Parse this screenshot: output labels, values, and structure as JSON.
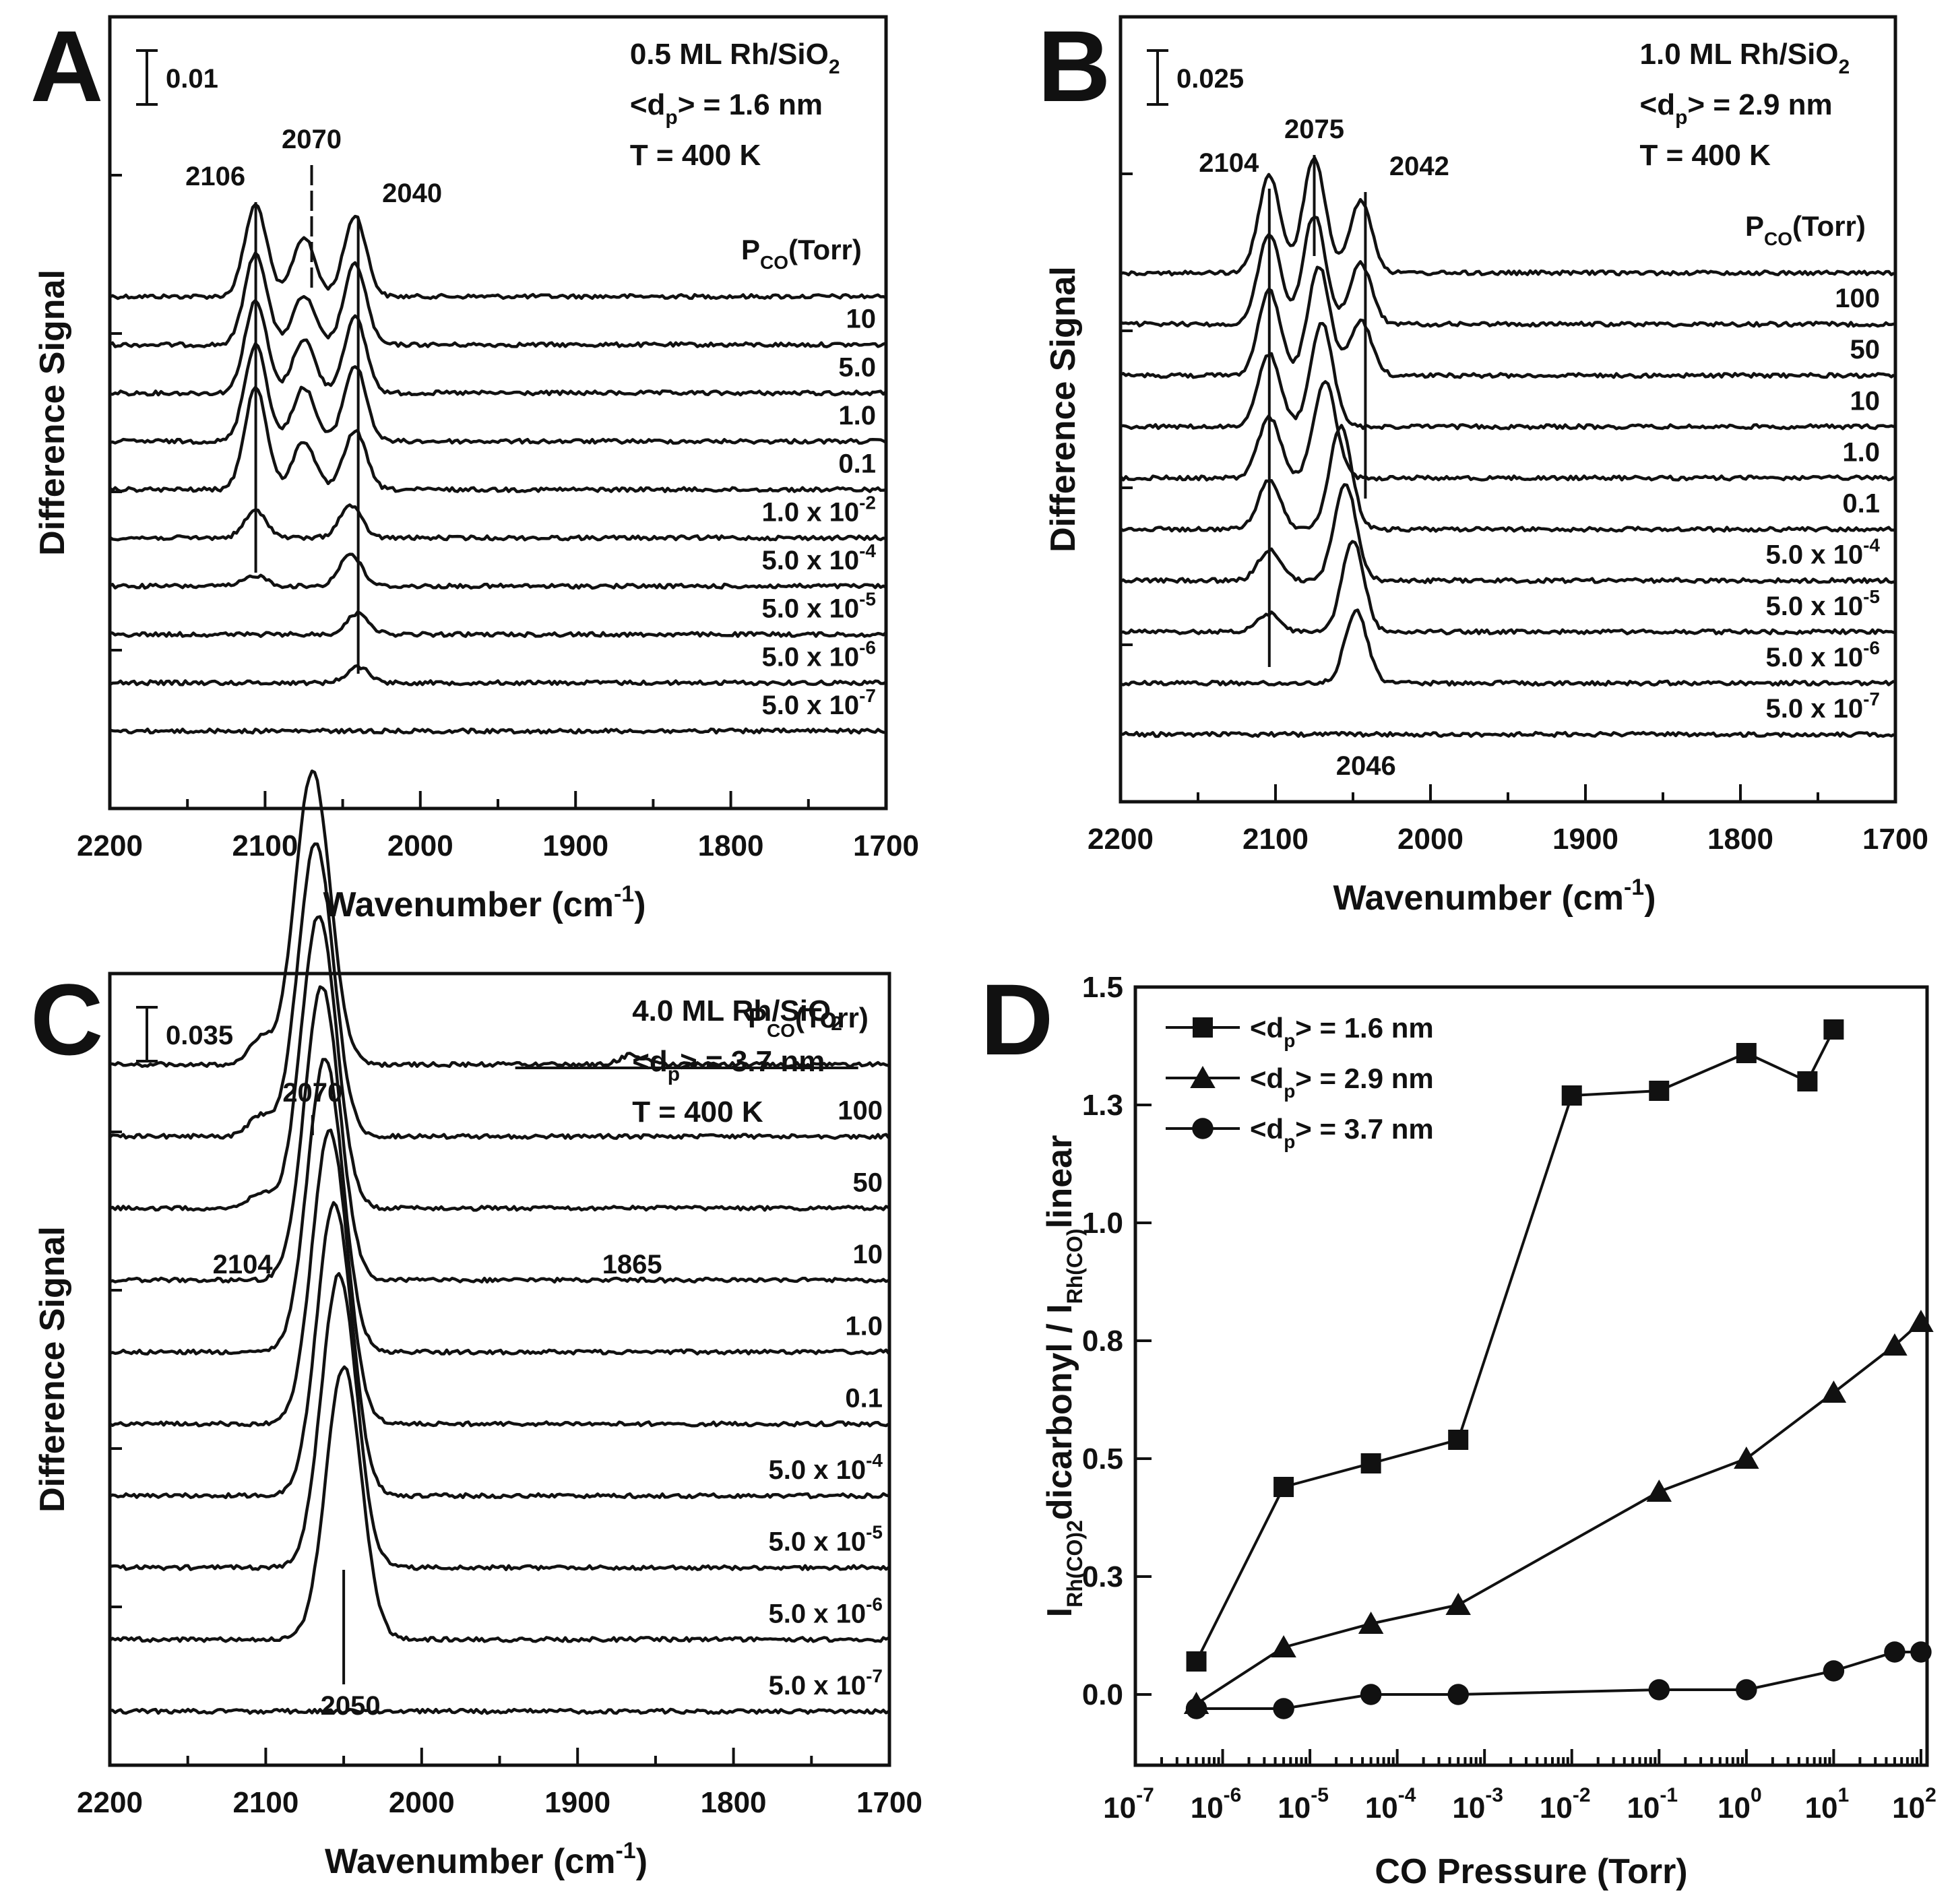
{
  "chart_data": [
    {
      "panel": "A",
      "type": "line",
      "scale_bar": "0.01",
      "info": [
        "0.5 ML Rh/SiO",
        "<d",
        "> = 1.6 nm",
        "T = 400 K"
      ],
      "info_sub": [
        "2",
        "p"
      ],
      "xlabel": "Wavenumber (cm",
      "xlabel_sup": "-1",
      "ylabel": "Difference Signal",
      "xlim": [
        2200,
        1700
      ],
      "xticks": [
        "2200",
        "2100",
        "2000",
        "1900",
        "1800",
        "1700"
      ],
      "pressure_header": "P",
      "pressure_header_sub": "CO",
      "pressure_header_unit": "(Torr)",
      "peak_labels": [
        "2106",
        "2070",
        "2040"
      ],
      "peak_positions": [
        2106,
        2070,
        2040
      ],
      "traces": [
        {
          "base": "",
          "exp": "",
          "peaks": [
            [
              2106,
              0.85
            ],
            [
              2075,
              0.55
            ],
            [
              2042,
              0.75
            ]
          ]
        },
        {
          "base": "10",
          "exp": "",
          "peaks": [
            [
              2106,
              0.85
            ],
            [
              2075,
              0.45
            ],
            [
              2042,
              0.75
            ]
          ]
        },
        {
          "base": "5.0",
          "exp": "",
          "peaks": [
            [
              2106,
              0.85
            ],
            [
              2075,
              0.5
            ],
            [
              2042,
              0.7
            ]
          ]
        },
        {
          "base": "1.0",
          "exp": "",
          "peaks": [
            [
              2106,
              0.9
            ],
            [
              2075,
              0.5
            ],
            [
              2042,
              0.7
            ]
          ]
        },
        {
          "base": "0.1",
          "exp": "",
          "peaks": [
            [
              2106,
              0.95
            ],
            [
              2075,
              0.45
            ],
            [
              2042,
              0.55
            ]
          ]
        },
        {
          "base": "1.0 x 10",
          "exp": "-2",
          "peaks": [
            [
              2106,
              0.25
            ],
            [
              2045,
              0.3
            ]
          ]
        },
        {
          "base": "5.0 x 10",
          "exp": "-4",
          "peaks": [
            [
              2106,
              0.1
            ],
            [
              2045,
              0.3
            ]
          ]
        },
        {
          "base": "5.0 x 10",
          "exp": "-5",
          "peaks": [
            [
              2040,
              0.2
            ]
          ]
        },
        {
          "base": "5.0 x 10",
          "exp": "-6",
          "peaks": [
            [
              2040,
              0.15
            ]
          ]
        },
        {
          "base": "5.0 x 10",
          "exp": "-7",
          "peaks": []
        }
      ]
    },
    {
      "panel": "B",
      "type": "line",
      "scale_bar": "0.025",
      "info": [
        "1.0 ML Rh/SiO",
        "<d",
        "> = 2.9 nm",
        "T = 400 K"
      ],
      "info_sub": [
        "2",
        "p"
      ],
      "xlabel": "Wavenumber (cm",
      "xlabel_sup": "-1",
      "ylabel": "Difference Signal",
      "xlim": [
        2200,
        1700
      ],
      "xticks": [
        "2200",
        "2100",
        "2000",
        "1900",
        "1800",
        "1700"
      ],
      "pressure_header": "P",
      "pressure_header_sub": "CO",
      "pressure_header_unit": "(Torr)",
      "peak_labels": [
        "2104",
        "2075",
        "2042",
        "2046"
      ],
      "peak_positions": [
        2104,
        2075,
        2042,
        2046
      ],
      "traces": [
        {
          "base": "",
          "exp": "",
          "peaks": [
            [
              2104,
              0.8
            ],
            [
              2075,
              0.95
            ],
            [
              2045,
              0.6
            ]
          ]
        },
        {
          "base": "100",
          "exp": "",
          "peaks": [
            [
              2104,
              0.75
            ],
            [
              2075,
              0.9
            ],
            [
              2045,
              0.5
            ]
          ]
        },
        {
          "base": "50",
          "exp": "",
          "peaks": [
            [
              2104,
              0.7
            ],
            [
              2072,
              0.9
            ],
            [
              2045,
              0.45
            ]
          ]
        },
        {
          "base": "10",
          "exp": "",
          "peaks": [
            [
              2104,
              0.6
            ],
            [
              2070,
              0.85
            ]
          ]
        },
        {
          "base": "1.0",
          "exp": "",
          "peaks": [
            [
              2104,
              0.5
            ],
            [
              2068,
              0.8
            ]
          ]
        },
        {
          "base": "0.1",
          "exp": "",
          "peaks": [
            [
              2104,
              0.4
            ],
            [
              2058,
              0.85
            ]
          ]
        },
        {
          "base": "5.0 x 10",
          "exp": "-4",
          "peaks": [
            [
              2104,
              0.25
            ],
            [
              2055,
              0.8
            ]
          ]
        },
        {
          "base": "5.0 x 10",
          "exp": "-5",
          "peaks": [
            [
              2104,
              0.15
            ],
            [
              2050,
              0.75
            ]
          ]
        },
        {
          "base": "5.0 x 10",
          "exp": "-6",
          "peaks": [
            [
              2048,
              0.6
            ]
          ]
        },
        {
          "base": "5.0 x 10",
          "exp": "-7",
          "peaks": []
        }
      ]
    },
    {
      "panel": "C",
      "type": "line",
      "scale_bar": "0.035",
      "info": [
        "4.0 ML Rh/SiO",
        "<d",
        "> = 3.7 nm",
        "T = 400 K"
      ],
      "info_sub": [
        "2",
        "p"
      ],
      "xlabel": "Wavenumber (cm",
      "xlabel_sup": "-1",
      "ylabel": "Difference Signal",
      "xlim": [
        2200,
        1700
      ],
      "xticks": [
        "2200",
        "2100",
        "2000",
        "1900",
        "1800",
        "1700"
      ],
      "pressure_header": "P",
      "pressure_header_sub": "CO",
      "pressure_header_unit": "(Torr)",
      "peak_labels": [
        "2070",
        "2104",
        "1865",
        "2050"
      ],
      "peak_positions": [
        2070,
        2104,
        1865,
        2050
      ],
      "traces": [
        {
          "base": "",
          "exp": "",
          "peaks": [
            [
              2070,
              2.9
            ],
            [
              2104,
              0.25
            ],
            [
              1865,
              0.1
            ]
          ]
        },
        {
          "base": "100",
          "exp": "",
          "peaks": [
            [
              2068,
              2.9
            ],
            [
              2104,
              0.2
            ]
          ]
        },
        {
          "base": "50",
          "exp": "",
          "peaks": [
            [
              2066,
              2.9
            ],
            [
              2104,
              0.15
            ]
          ]
        },
        {
          "base": "10",
          "exp": "",
          "peaks": [
            [
              2064,
              2.9
            ]
          ]
        },
        {
          "base": "1.0",
          "exp": "",
          "peaks": [
            [
              2062,
              2.9
            ]
          ]
        },
        {
          "base": "0.1",
          "exp": "",
          "peaks": [
            [
              2059,
              2.9
            ]
          ]
        },
        {
          "base": "5.0 x 10",
          "exp": "-4",
          "peaks": [
            [
              2056,
              2.9
            ]
          ]
        },
        {
          "base": "5.0 x 10",
          "exp": "-5",
          "peaks": [
            [
              2053,
              2.9
            ]
          ]
        },
        {
          "base": "5.0 x 10",
          "exp": "-6",
          "peaks": [
            [
              2050,
              2.7
            ]
          ]
        },
        {
          "base": "5.0 x 10",
          "exp": "-7",
          "peaks": []
        }
      ]
    },
    {
      "panel": "D",
      "type": "scatter",
      "xscale": "log",
      "xlabel": "CO Pressure (Torr)",
      "ylabel_parts": [
        "I",
        "Rh(CO)2",
        "dicarbonyl / I",
        "Rh(CO)",
        "linear"
      ],
      "xlim_exp": [
        -7,
        2
      ],
      "xtick_exps": [
        "-7",
        "-6",
        "-5",
        "-4",
        "-3",
        "-2",
        "-1",
        "0",
        "1",
        "2"
      ],
      "ylim": [
        -0.15,
        1.5
      ],
      "yticks": [
        "0.0",
        "0.3",
        "0.5",
        "0.8",
        "1.0",
        "1.3",
        "1.5"
      ],
      "ytick_values": [
        0.0,
        0.25,
        0.5,
        0.75,
        1.0,
        1.25,
        1.5
      ],
      "legend_position": "top-left",
      "series": [
        {
          "name": "<d",
          "name_sub": "p",
          "name_rest": "> = 1.6 nm",
          "marker": "square",
          "x": [
            5e-07,
            5e-06,
            5e-05,
            0.0005,
            0.01,
            0.1,
            1.0,
            5.0,
            10
          ],
          "y": [
            0.07,
            0.44,
            0.49,
            0.54,
            1.27,
            1.28,
            1.36,
            1.3,
            1.41
          ]
        },
        {
          "name": "<d",
          "name_sub": "p",
          "name_rest": "> = 2.9 nm",
          "marker": "triangle",
          "x": [
            5e-07,
            5e-06,
            5e-05,
            0.0005,
            0.1,
            1.0,
            10,
            50,
            100
          ],
          "y": [
            -0.02,
            0.1,
            0.15,
            0.19,
            0.43,
            0.5,
            0.64,
            0.74,
            0.79
          ]
        },
        {
          "name": "<d",
          "name_sub": "p",
          "name_rest": "> = 3.7 nm",
          "marker": "circle",
          "x": [
            5e-07,
            5e-06,
            5e-05,
            0.0005,
            0.1,
            1.0,
            10,
            50,
            100
          ],
          "y": [
            -0.03,
            -0.03,
            0.0,
            0.0,
            0.01,
            0.01,
            0.05,
            0.09,
            0.09
          ]
        }
      ]
    }
  ]
}
